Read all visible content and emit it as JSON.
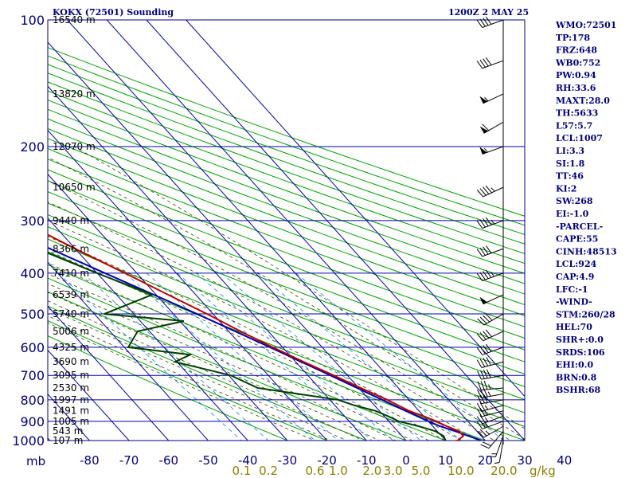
{
  "header": {
    "station": "KOKX (72501) Sounding",
    "time": "1200Z  2 MAY 25"
  },
  "indices": [
    "WMO:72501",
    "TP:178",
    "FRZ:648",
    "WB0:752",
    "PW:0.94",
    "RH:33.6",
    "MAXT:28.0",
    "TH:5633",
    "L57:5.7",
    "LCL:1007",
    "LI:3.3",
    "SI:1.8",
    "TT:46",
    "KI:2",
    "SW:268",
    "EI:-1.0",
    "-PARCEL-",
    "CAPE:55",
    "CINH:48513",
    "LCL:924",
    "CAP:4.9",
    "LFC:-1",
    "-WIND-",
    "STM:260/28",
    "HEL:70",
    "SHR+:0.0",
    "SRDS:106",
    "EHI:0.0",
    "BRN:0.8",
    "BSHR:68"
  ],
  "axis_unit_left": "mb",
  "axis_unit_right": "g/kg",
  "colors": {
    "axis": "#000080",
    "isobar": "#0000aa",
    "isotherm": "#0000aa",
    "dry_adiabat": "#00a000",
    "moist_adiabat": "#000000",
    "mixing_ratio": "#0080ff",
    "temperature": "#c00000",
    "dewpoint": "#004000",
    "parcel": "#0000b0",
    "wind": "#000000",
    "mix_label": "#8b8000"
  },
  "chart_data": {
    "type": "skew-t",
    "pressure_levels": [
      100,
      200,
      300,
      400,
      500,
      600,
      700,
      800,
      900,
      1000
    ],
    "pressure_tick_labels": [
      "100",
      "200",
      "300",
      "400",
      "500",
      "600",
      "700",
      "800",
      "900",
      "1000"
    ],
    "temperature_ticks": [
      -80,
      -70,
      -60,
      -50,
      -40,
      -30,
      -20,
      -10,
      0,
      10,
      20,
      30,
      40
    ],
    "temperature_tick_labels": [
      "-80",
      "-70",
      "-60",
      "-50",
      "-40",
      "-30",
      "-20",
      "-10",
      "0",
      "10",
      "20",
      "30",
      "40"
    ],
    "mixing_ratio_ticks": [
      0.1,
      0.2,
      0.6,
      1.0,
      2.0,
      3.0,
      5.0,
      10.0,
      20.0
    ],
    "mixing_ratio_tick_labels": [
      "0.1",
      "0.2",
      "0.6",
      "1.0",
      "2.0",
      "3.0",
      "5.0",
      "10.0",
      "20.0"
    ],
    "heights": [
      {
        "p": 100,
        "label": "16540 m"
      },
      {
        "p": 150,
        "label": "13820 m"
      },
      {
        "p": 200,
        "label": "12070 m"
      },
      {
        "p": 250,
        "label": "10650 m"
      },
      {
        "p": 300,
        "label": "9440 m"
      },
      {
        "p": 350,
        "label": "8366 m"
      },
      {
        "p": 400,
        "label": "7410 m"
      },
      {
        "p": 450,
        "label": "6539 m"
      },
      {
        "p": 500,
        "label": "5740 m"
      },
      {
        "p": 550,
        "label": "5006 m"
      },
      {
        "p": 600,
        "label": "4325 m"
      },
      {
        "p": 650,
        "label": "3690 m"
      },
      {
        "p": 700,
        "label": "3095 m"
      },
      {
        "p": 750,
        "label": "2530 m"
      },
      {
        "p": 800,
        "label": "1997 m"
      },
      {
        "p": 850,
        "label": "1491 m"
      },
      {
        "p": 900,
        "label": "1005 m"
      },
      {
        "p": 950,
        "label": "543 m"
      },
      {
        "p": 1000,
        "label": "107 m"
      }
    ],
    "temperature": [
      {
        "p": 1008,
        "t": 9.6
      },
      {
        "p": 1000,
        "t": 13.0
      },
      {
        "p": 975,
        "t": 15.5
      },
      {
        "p": 950,
        "t": 15.5
      },
      {
        "p": 925,
        "t": 13.5
      },
      {
        "p": 900,
        "t": 12.0
      },
      {
        "p": 875,
        "t": 10.0
      },
      {
        "p": 850,
        "t": 7.5
      },
      {
        "p": 825,
        "t": 6.0
      },
      {
        "p": 800,
        "t": 4.5
      },
      {
        "p": 750,
        "t": 0.5
      },
      {
        "p": 700,
        "t": -3.5
      },
      {
        "p": 650,
        "t": -8.0
      },
      {
        "p": 600,
        "t": -12.5
      },
      {
        "p": 550,
        "t": -17.0
      },
      {
        "p": 500,
        "t": -21.5
      },
      {
        "p": 450,
        "t": -27.0
      },
      {
        "p": 400,
        "t": -33.0
      },
      {
        "p": 350,
        "t": -40.0
      },
      {
        "p": 300,
        "t": -47.5
      },
      {
        "p": 250,
        "t": -53.5
      },
      {
        "p": 200,
        "t": -58.5
      },
      {
        "p": 175,
        "t": -56.0
      },
      {
        "p": 150,
        "t": -55.5
      },
      {
        "p": 125,
        "t": -59.0
      },
      {
        "p": 100,
        "t": -62.0
      }
    ],
    "dewpoint": [
      {
        "p": 1008,
        "t": 9.4
      },
      {
        "p": 1000,
        "t": 10.0
      },
      {
        "p": 975,
        "t": 10.5
      },
      {
        "p": 950,
        "t": 9.5
      },
      {
        "p": 925,
        "t": 6.5
      },
      {
        "p": 900,
        "t": 2.5
      },
      {
        "p": 875,
        "t": 1.0
      },
      {
        "p": 850,
        "t": -1.0
      },
      {
        "p": 825,
        "t": -5.0
      },
      {
        "p": 800,
        "t": -8.0
      },
      {
        "p": 750,
        "t": -25.5
      },
      {
        "p": 700,
        "t": -29.5
      },
      {
        "p": 650,
        "t": -40.5
      },
      {
        "p": 625,
        "t": -35.0
      },
      {
        "p": 600,
        "t": -49.0
      },
      {
        "p": 550,
        "t": -43.0
      },
      {
        "p": 520,
        "t": -29.0
      },
      {
        "p": 500,
        "t": -47.5
      },
      {
        "p": 450,
        "t": -31.0
      },
      {
        "p": 400,
        "t": -40.0
      },
      {
        "p": 350,
        "t": -49.5
      },
      {
        "p": 300,
        "t": -56.5
      },
      {
        "p": 250,
        "t": -60.5
      },
      {
        "p": 200,
        "t": -65.5
      },
      {
        "p": 175,
        "t": -69.0
      },
      {
        "p": 150,
        "t": -70.5
      },
      {
        "p": 125,
        "t": -72.5
      },
      {
        "p": 100,
        "t": -74.0
      }
    ],
    "parcel": [
      {
        "p": 1000,
        "t": 19.0
      },
      {
        "p": 950,
        "t": 14.5
      },
      {
        "p": 924,
        "t": 11.8
      },
      {
        "p": 900,
        "t": 10.0
      },
      {
        "p": 850,
        "t": 6.6
      },
      {
        "p": 800,
        "t": 3.2
      },
      {
        "p": 700,
        "t": -4.3
      },
      {
        "p": 600,
        "t": -13.2
      },
      {
        "p": 500,
        "t": -24.0
      },
      {
        "p": 400,
        "t": -38.0
      },
      {
        "p": 300,
        "t": -56.0
      },
      {
        "p": 200,
        "t": -78.0
      },
      {
        "p": 170,
        "t": -85.0
      }
    ],
    "wind": [
      {
        "p": 1000,
        "dir": 190,
        "spd": 5
      },
      {
        "p": 975,
        "dir": 200,
        "spd": 15
      },
      {
        "p": 950,
        "dir": 220,
        "spd": 20
      },
      {
        "p": 925,
        "dir": 240,
        "spd": 25
      },
      {
        "p": 900,
        "dir": 250,
        "spd": 25
      },
      {
        "p": 875,
        "dir": 250,
        "spd": 25
      },
      {
        "p": 850,
        "dir": 255,
        "spd": 25
      },
      {
        "p": 825,
        "dir": 255,
        "spd": 25
      },
      {
        "p": 800,
        "dir": 260,
        "spd": 30
      },
      {
        "p": 775,
        "dir": 260,
        "spd": 35
      },
      {
        "p": 750,
        "dir": 265,
        "spd": 35
      },
      {
        "p": 700,
        "dir": 260,
        "spd": 40
      },
      {
        "p": 650,
        "dir": 255,
        "spd": 40
      },
      {
        "p": 600,
        "dir": 250,
        "spd": 40
      },
      {
        "p": 550,
        "dir": 245,
        "spd": 40
      },
      {
        "p": 500,
        "dir": 240,
        "spd": 40
      },
      {
        "p": 450,
        "dir": 245,
        "spd": 50
      },
      {
        "p": 400,
        "dir": 250,
        "spd": 45
      },
      {
        "p": 350,
        "dir": 250,
        "spd": 40
      },
      {
        "p": 300,
        "dir": 250,
        "spd": 45
      },
      {
        "p": 250,
        "dir": 245,
        "spd": 45
      },
      {
        "p": 200,
        "dir": 250,
        "spd": 55
      },
      {
        "p": 175,
        "dir": 240,
        "spd": 60
      },
      {
        "p": 150,
        "dir": 245,
        "spd": 55
      },
      {
        "p": 125,
        "dir": 250,
        "spd": 40
      },
      {
        "p": 100,
        "dir": 250,
        "spd": 40
      }
    ]
  }
}
